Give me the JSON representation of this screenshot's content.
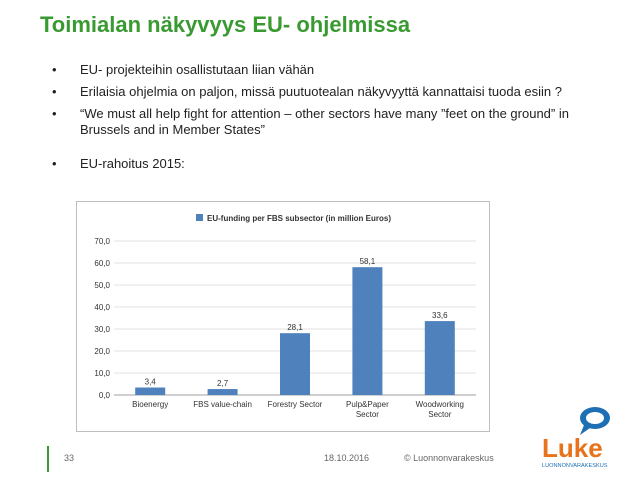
{
  "slide": {
    "title": "Toimialan näkyvyys EU- ohjelmissa",
    "bullets": [
      "EU- projekteihin osallistutaan liian vähän",
      "Erilaisia ohjelmia on paljon, missä puutuotealan näkyvyyttä kannattaisi tuoda esiin ?",
      "“We must all help fight for attention – other sectors have many ”feet on the ground” in Brussels and in Member States”",
      "EU-rahoitus 2015:"
    ],
    "bullet_symbol": "•",
    "page_number": "33",
    "date": "18.10.2016",
    "copyright": "© Luonnonvarakeskus",
    "logo_text": "Luke",
    "logo_subtext": "LUONNONVARAKESKUS",
    "colors": {
      "title": "#3a9a32",
      "bar": "#4f81bd",
      "logo_orange": "#e8731a",
      "logo_blue": "#1f6fb5"
    }
  },
  "chart_data": {
    "type": "bar",
    "legend": "EU-funding per FBS subsector (in million Euros)",
    "categories": [
      "Bioenergy",
      "FBS value-chain",
      "Forestry Sector",
      "Pulp&Paper Sector",
      "Woodworking Sector"
    ],
    "values": [
      3.4,
      2.7,
      28.1,
      58.1,
      33.6
    ],
    "value_labels": [
      "3,4",
      "2,7",
      "28,1",
      "58,1",
      "33,6"
    ],
    "y_ticks": [
      "0,0",
      "10,0",
      "20,0",
      "30,0",
      "40,0",
      "50,0",
      "60,0",
      "70,0"
    ],
    "ylim": [
      0,
      70
    ],
    "legend_position": "top"
  }
}
